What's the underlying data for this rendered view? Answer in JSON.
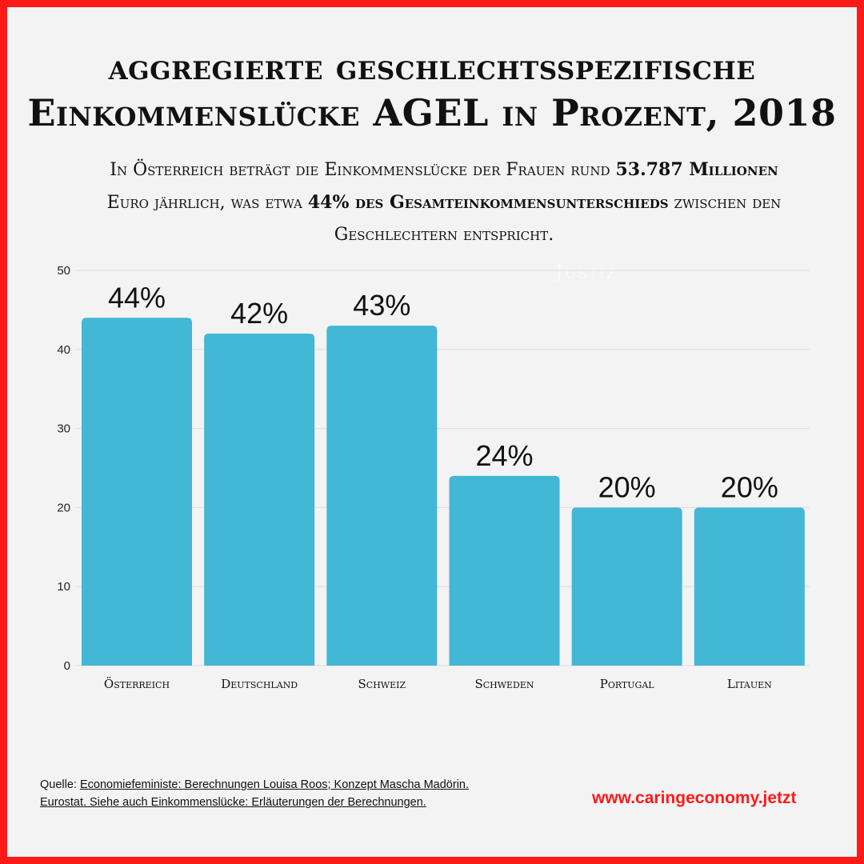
{
  "title": {
    "line1": "aggregierte geschlechtsspezifische",
    "line2": "Einkommenslücke AGEL in Prozent, 2018"
  },
  "subtitle": {
    "part1": "In Österreich  beträgt die Einkommenslücke der Frauen rund ",
    "bold1": "53.787 Millionen",
    "part2": "Euro  jährlich, was etwa ",
    "bold2": "44% des Gesamteinkommensunterschieds",
    "part3": " zwischen den Geschlechtern entspricht."
  },
  "watermark": "Justiz",
  "chart_data": {
    "type": "bar",
    "categories": [
      "Österreich",
      "Deutschland",
      "Schweiz",
      "Schweden",
      "Portugal",
      "Litauen"
    ],
    "values": [
      44,
      42,
      43,
      24,
      20,
      20
    ],
    "data_labels": [
      "44%",
      "42%",
      "43%",
      "24%",
      "20%",
      "20%"
    ],
    "yticks": [
      0,
      10,
      20,
      30,
      40,
      50
    ],
    "ylim": [
      0,
      50
    ],
    "grid": true,
    "bar_color": "#42b7d6",
    "grid_color": "#dcdcdc"
  },
  "footer": {
    "prefix": "Quelle: ",
    "source_line1": "Economiefeministe: Berechnungen Louisa Roos; Konzept Mascha Madörin.",
    "source_line2": "Eurostat. Siehe auch Einkommenslücke: Erläuterungen der Berechnungen."
  },
  "website": "www.caringeconomy.jetzt",
  "colors": {
    "border": "#ff1a1a",
    "background": "#f3f3f3",
    "website": "#ff1a1a"
  }
}
